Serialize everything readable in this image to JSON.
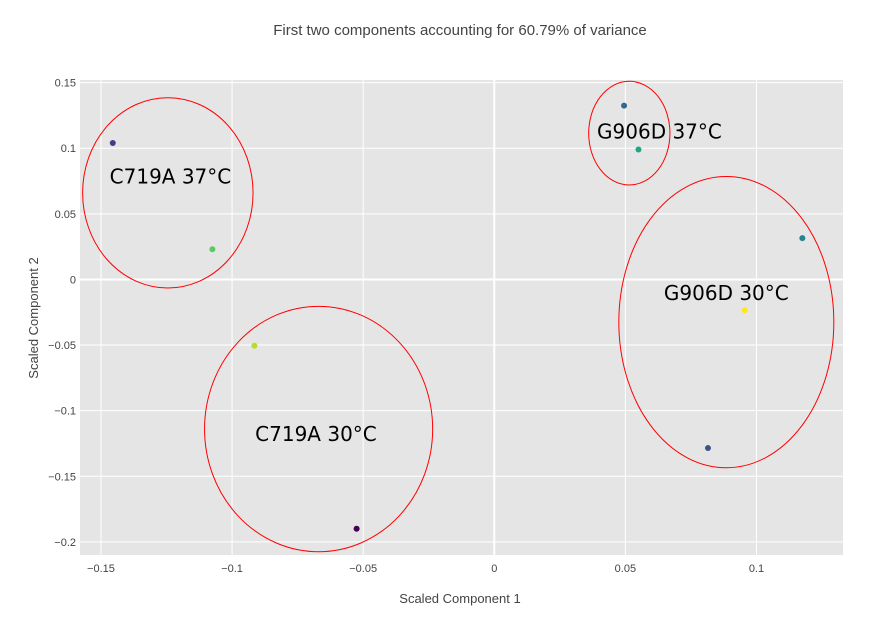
{
  "chart_data": {
    "type": "scatter",
    "title": "First two components accounting for 60.79% of variance",
    "xlabel": "Scaled Component 1",
    "ylabel": "Scaled Component 2",
    "xlim": [
      -0.158,
      0.133
    ],
    "ylim": [
      -0.21,
      0.152
    ],
    "grid": true,
    "x_ticks": [
      {
        "value": -0.15,
        "label": "−0.15"
      },
      {
        "value": -0.1,
        "label": "−0.1"
      },
      {
        "value": -0.05,
        "label": "−0.05"
      },
      {
        "value": 0,
        "label": "0"
      },
      {
        "value": 0.05,
        "label": "0.05"
      },
      {
        "value": 0.1,
        "label": "0.1"
      }
    ],
    "y_ticks": [
      {
        "value": 0.15,
        "label": "0.15"
      },
      {
        "value": 0.1,
        "label": "0.1"
      },
      {
        "value": 0.05,
        "label": "0.05"
      },
      {
        "value": 0,
        "label": "0"
      },
      {
        "value": -0.05,
        "label": "−0.05"
      },
      {
        "value": -0.1,
        "label": "−0.1"
      },
      {
        "value": -0.15,
        "label": "−0.15"
      },
      {
        "value": -0.2,
        "label": "−0.2"
      }
    ],
    "points": [
      {
        "x": -0.1455,
        "y": 0.104,
        "color": "#433e85"
      },
      {
        "x": -0.1075,
        "y": 0.023,
        "color": "#5ec962"
      },
      {
        "x": -0.0915,
        "y": -0.0505,
        "color": "#b5de2b"
      },
      {
        "x": -0.0525,
        "y": -0.19,
        "color": "#440154"
      },
      {
        "x": 0.0495,
        "y": 0.1325,
        "color": "#31688e"
      },
      {
        "x": 0.055,
        "y": 0.099,
        "color": "#20a486"
      },
      {
        "x": 0.1175,
        "y": 0.0315,
        "color": "#26828e"
      },
      {
        "x": 0.0955,
        "y": -0.0235,
        "color": "#fde725"
      },
      {
        "x": 0.0815,
        "y": -0.1285,
        "color": "#3b528b"
      }
    ],
    "annotations": [
      {
        "text": "C719A 37°C",
        "x": -0.1235,
        "y": 0.073,
        "ellipse": {
          "cx": -0.1245,
          "cy": 0.066,
          "rx": 0.0325,
          "ry": 0.0725
        }
      },
      {
        "text": "C719A 30°C",
        "x": -0.068,
        "y": -0.123,
        "ellipse": {
          "cx": -0.067,
          "cy": -0.114,
          "rx": 0.0435,
          "ry": 0.0935
        }
      },
      {
        "text": "G906D 37°C",
        "x": 0.063,
        "y": 0.1075,
        "ellipse": {
          "cx": 0.0515,
          "cy": 0.1115,
          "rx": 0.0155,
          "ry": 0.0395
        }
      },
      {
        "text": "G906D 30°C",
        "x": 0.0885,
        "y": -0.0155,
        "ellipse": {
          "cx": 0.0885,
          "cy": -0.0325,
          "rx": 0.041,
          "ry": 0.111
        }
      }
    ],
    "colors": {
      "plot_bg": "#e5e5e5",
      "grid": "#ffffff",
      "ellipse": "#ff0000"
    }
  }
}
